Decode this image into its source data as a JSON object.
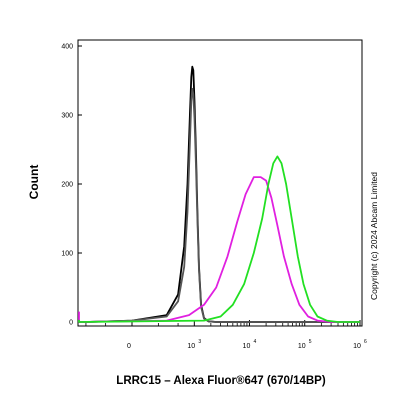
{
  "chart_data": {
    "type": "line",
    "title": "",
    "xlabel": "LRRC15 – Alexa Fluor®647 (670/14BP)",
    "ylabel": "Count",
    "ylim": [
      0,
      400
    ],
    "y_ticks": [
      "0",
      "100",
      "200",
      "300",
      "400"
    ],
    "x_scale": "biexponential",
    "x_ticks": [
      {
        "base": "0",
        "exp": ""
      },
      {
        "base": "10",
        "exp": "3"
      },
      {
        "base": "10",
        "exp": "4"
      },
      {
        "base": "10",
        "exp": "5"
      },
      {
        "base": "10",
        "exp": "6"
      }
    ],
    "grid": false,
    "legend": "none",
    "series": [
      {
        "color": "#000000",
        "points": [
          [
            -1200,
            0
          ],
          [
            -500,
            0
          ],
          [
            0,
            2
          ],
          [
            300,
            10
          ],
          [
            500,
            40
          ],
          [
            650,
            110
          ],
          [
            750,
            200
          ],
          [
            830,
            300
          ],
          [
            880,
            355
          ],
          [
            920,
            370
          ],
          [
            960,
            365
          ],
          [
            1010,
            320
          ],
          [
            1070,
            250
          ],
          [
            1140,
            160
          ],
          [
            1220,
            80
          ],
          [
            1330,
            25
          ],
          [
            1500,
            6
          ],
          [
            1800,
            1
          ],
          [
            2500,
            0
          ],
          [
            10000,
            0
          ],
          [
            1000000,
            0
          ]
        ]
      },
      {
        "color": "#555555",
        "points": [
          [
            -1200,
            0
          ],
          [
            -500,
            0
          ],
          [
            0,
            2
          ],
          [
            300,
            8
          ],
          [
            500,
            30
          ],
          [
            650,
            80
          ],
          [
            750,
            160
          ],
          [
            830,
            260
          ],
          [
            880,
            320
          ],
          [
            920,
            338
          ],
          [
            960,
            330
          ],
          [
            1010,
            295
          ],
          [
            1070,
            230
          ],
          [
            1140,
            150
          ],
          [
            1220,
            75
          ],
          [
            1330,
            22
          ],
          [
            1500,
            5
          ],
          [
            1800,
            1
          ],
          [
            2500,
            0
          ],
          [
            10000,
            0
          ],
          [
            1000000,
            0
          ]
        ]
      },
      {
        "color": "#e020e0",
        "points": [
          [
            -3500,
            15
          ],
          [
            -3000,
            2
          ],
          [
            -1000,
            0
          ],
          [
            300,
            2
          ],
          [
            800,
            10
          ],
          [
            1500,
            25
          ],
          [
            2500,
            50
          ],
          [
            4000,
            95
          ],
          [
            6000,
            145
          ],
          [
            8500,
            185
          ],
          [
            12000,
            210
          ],
          [
            16000,
            210
          ],
          [
            20000,
            205
          ],
          [
            25000,
            180
          ],
          [
            32000,
            140
          ],
          [
            42000,
            95
          ],
          [
            58000,
            55
          ],
          [
            80000,
            25
          ],
          [
            115000,
            8
          ],
          [
            170000,
            2
          ],
          [
            300000,
            0
          ],
          [
            1000000,
            0
          ]
        ]
      },
      {
        "color": "#22e022",
        "points": [
          [
            -3500,
            3
          ],
          [
            -1000,
            0
          ],
          [
            1500,
            2
          ],
          [
            3000,
            8
          ],
          [
            5000,
            25
          ],
          [
            8000,
            55
          ],
          [
            12000,
            100
          ],
          [
            17000,
            150
          ],
          [
            22000,
            200
          ],
          [
            27000,
            230
          ],
          [
            32000,
            240
          ],
          [
            38000,
            230
          ],
          [
            46000,
            200
          ],
          [
            58000,
            150
          ],
          [
            75000,
            95
          ],
          [
            95000,
            55
          ],
          [
            125000,
            25
          ],
          [
            170000,
            8
          ],
          [
            250000,
            2
          ],
          [
            400000,
            0
          ],
          [
            1000000,
            0
          ]
        ]
      }
    ]
  },
  "watermark": "Copyright (c) 2024  Abcam Limited"
}
